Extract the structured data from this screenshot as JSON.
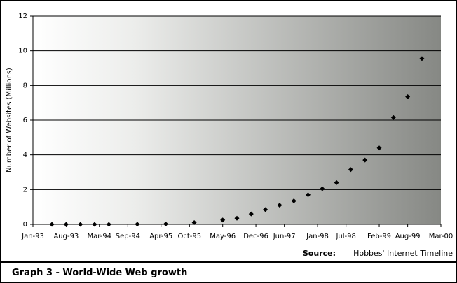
{
  "chart_data": {
    "type": "scatter",
    "y_label": "Number of Websites (Millions)",
    "source_label": "Source:",
    "source": "Hobbes' Internet Timeline",
    "caption": "Graph 3  - World-Wide Web growth",
    "x": [
      "1993-05",
      "1993-08",
      "1993-11",
      "1994-02",
      "1994-05",
      "1994-11",
      "1995-05",
      "1995-11",
      "1996-05",
      "1996-08",
      "1996-11",
      "1997-02",
      "1997-05",
      "1997-08",
      "1997-11",
      "1998-02",
      "1998-05",
      "1998-08",
      "1998-11",
      "1999-02",
      "1999-05",
      "1999-08",
      "1999-11"
    ],
    "series": [
      {
        "color": "#000000",
        "values": [
          0,
          0,
          0,
          0,
          0,
          0.01,
          0.02,
          0.1,
          0.25,
          0.35,
          0.6,
          0.85,
          1.1,
          1.35,
          1.7,
          2.05,
          2.4,
          3.15,
          3.7,
          4.4,
          6.15,
          7.35,
          9.55
        ]
      }
    ],
    "xlim": [
      "1993-01",
      "2000-03"
    ],
    "xticks": [
      {
        "value": "1993-01",
        "label": "Jan-93"
      },
      {
        "value": "1993-08",
        "label": "Aug-93"
      },
      {
        "value": "1994-03",
        "label": "Mar-94"
      },
      {
        "value": "1994-09",
        "label": "Sep-94"
      },
      {
        "value": "1995-04",
        "label": "Apr-95"
      },
      {
        "value": "1995-10",
        "label": "Oct-95"
      },
      {
        "value": "1996-05",
        "label": "May-96"
      },
      {
        "value": "1996-12",
        "label": "Dec-96"
      },
      {
        "value": "1997-06",
        "label": "Jun-97"
      },
      {
        "value": "1998-01",
        "label": "Jan-98"
      },
      {
        "value": "1998-07",
        "label": "Jul-98"
      },
      {
        "value": "1999-02",
        "label": "Feb-99"
      },
      {
        "value": "1999-08",
        "label": "Aug-99"
      },
      {
        "value": "2000-03",
        "label": "Mar-00"
      }
    ],
    "ylim": [
      0,
      12
    ],
    "yticks": [
      0,
      2,
      4,
      6,
      8,
      10,
      12
    ],
    "grid": true
  }
}
